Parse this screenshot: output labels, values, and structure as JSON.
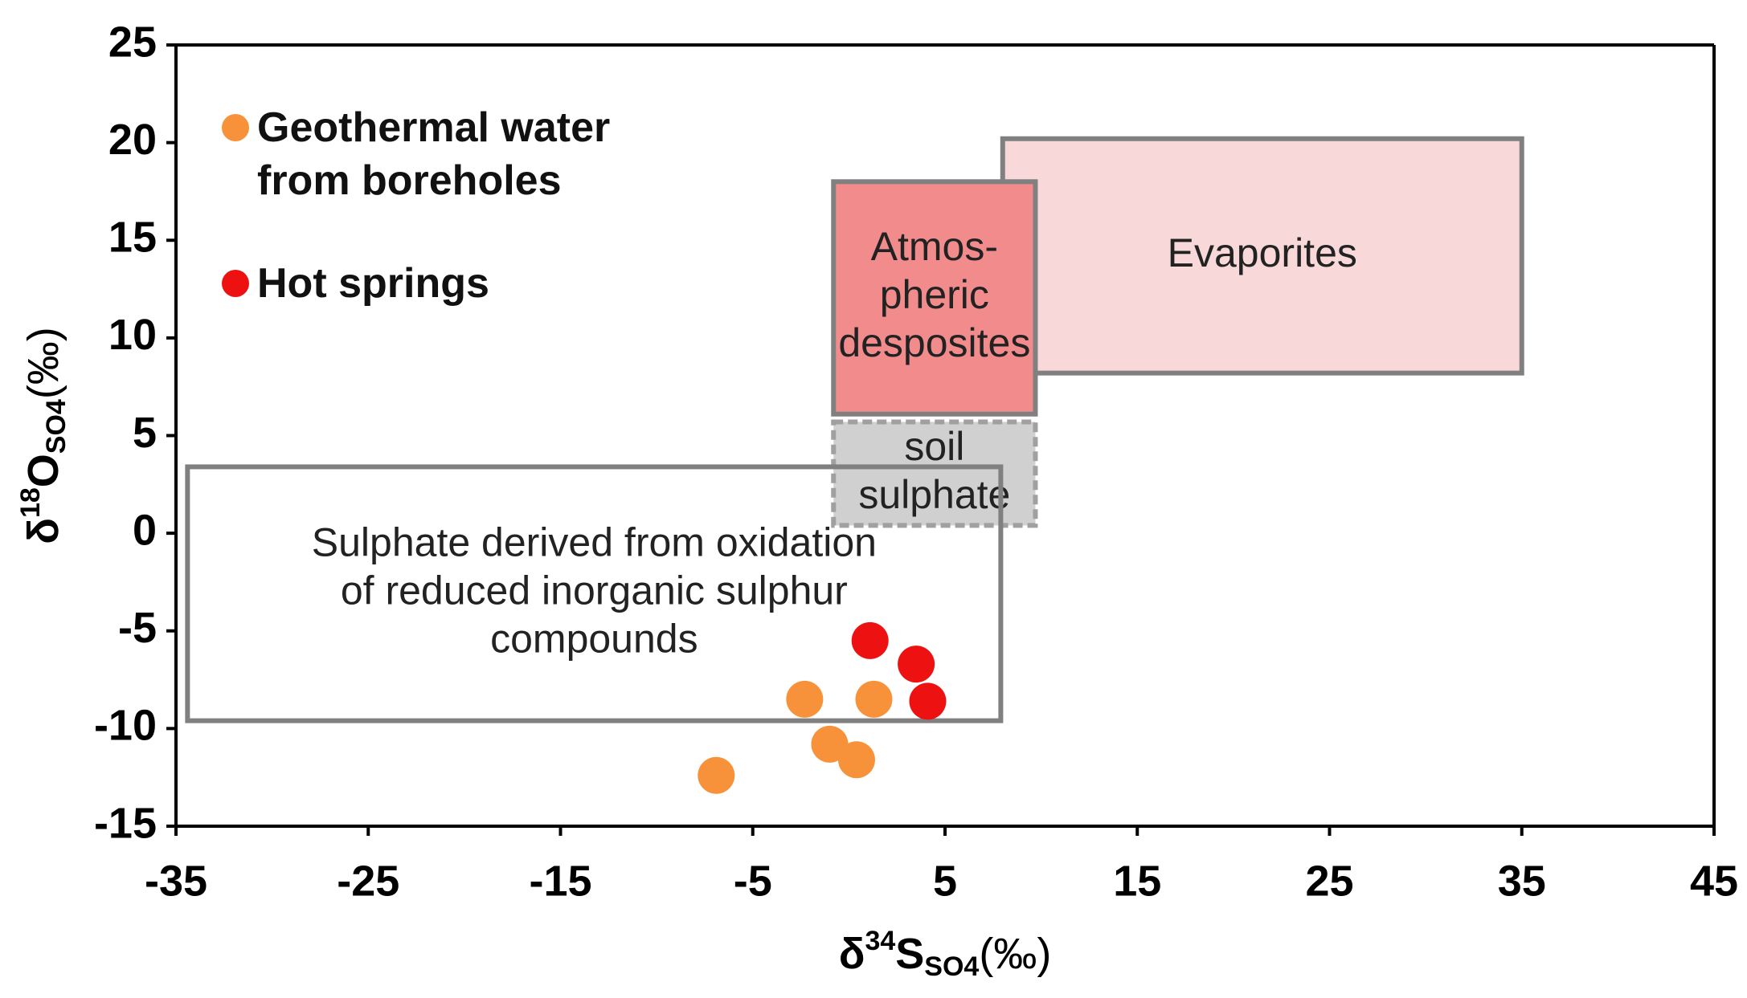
{
  "chart_data": {
    "type": "scatter",
    "x_label": {
      "pre": "δ",
      "sup": "34",
      "main": "S",
      "sub": "SO4",
      "post": "(‰)"
    },
    "y_label": {
      "pre": "δ",
      "sup": "18",
      "main": "O",
      "sub": "SO4",
      "post": "(‰)"
    },
    "xlim": [
      -35,
      45
    ],
    "xticks": [
      -35,
      -25,
      -15,
      -5,
      5,
      15,
      25,
      35,
      45
    ],
    "ylim": [
      -15,
      25
    ],
    "yticks": [
      -15,
      -10,
      -5,
      0,
      5,
      10,
      15,
      20,
      25
    ],
    "legend": "upper-left",
    "series": [
      {
        "name": "Geothermal water from boreholes",
        "color": "#f7923a",
        "x": [
          -6.9,
          -2.3,
          -1.0,
          0.4,
          1.3
        ],
        "values": [
          -12.4,
          -8.5,
          -10.8,
          -11.6,
          -8.5
        ]
      },
      {
        "name": "Hot springs",
        "color": "#ee1111",
        "x": [
          1.1,
          3.5,
          4.1
        ],
        "values": [
          -5.5,
          -6.7,
          -8.6
        ]
      }
    ],
    "regions": [
      {
        "lines": [
          "Evaporites"
        ],
        "x": [
          8,
          35
        ],
        "y": [
          8.2,
          20.2
        ],
        "fill": "#f8d8d8",
        "stroke": "#808080",
        "dashed": false
      },
      {
        "lines": [
          "Atmos-",
          "pheric",
          "desposites"
        ],
        "x": [
          -0.8,
          9.7
        ],
        "y": [
          6.1,
          18
        ],
        "fill": "#f28c8c",
        "stroke": "#808080",
        "dashed": false
      },
      {
        "lines": [
          "soil",
          "sulphate"
        ],
        "x": [
          -0.8,
          9.7
        ],
        "y": [
          0.4,
          5.7
        ],
        "fill": "#d0d0d0",
        "stroke": "#a0a0a0",
        "dashed": true
      },
      {
        "lines": [
          "Sulphate derived from oxidation",
          "of reduced inorganic sulphur",
          "compounds"
        ],
        "x": [
          -34.4,
          7.9
        ],
        "y": [
          -9.6,
          3.4
        ],
        "fill": "none",
        "stroke": "#808080",
        "dashed": false
      }
    ]
  }
}
